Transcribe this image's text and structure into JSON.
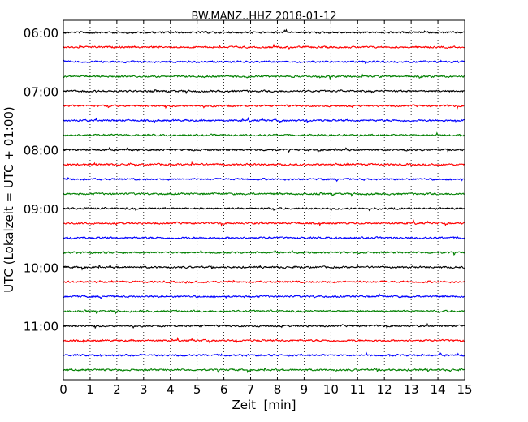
{
  "chart_data": {
    "type": "line",
    "title": "BW.MANZ..HHZ 2018-01-12",
    "xlabel": "Zeit  [min]",
    "ylabel": "UTC (Lokalzeit = UTC + 01:00)",
    "xlim": [
      0,
      15
    ],
    "x_ticks": [
      "0",
      "1",
      "2",
      "3",
      "4",
      "5",
      "6",
      "7",
      "8",
      "9",
      "10",
      "11",
      "12",
      "13",
      "14",
      "15"
    ],
    "y_ticks": [
      "06:00",
      "07:00",
      "08:00",
      "09:00",
      "10:00",
      "11:00"
    ],
    "grid": "vertical dotted",
    "trace_colors": [
      "#000000",
      "#ff0000",
      "#0000ff",
      "#008000"
    ],
    "trace_starts": [
      "06:00",
      "06:15",
      "06:30",
      "06:45",
      "07:00",
      "07:15",
      "07:30",
      "07:45",
      "08:00",
      "08:15",
      "08:30",
      "08:45",
      "09:00",
      "09:15",
      "09:30",
      "09:45",
      "10:00",
      "10:15",
      "10:30",
      "10:45",
      "11:00",
      "11:15",
      "11:30",
      "11:45"
    ]
  }
}
